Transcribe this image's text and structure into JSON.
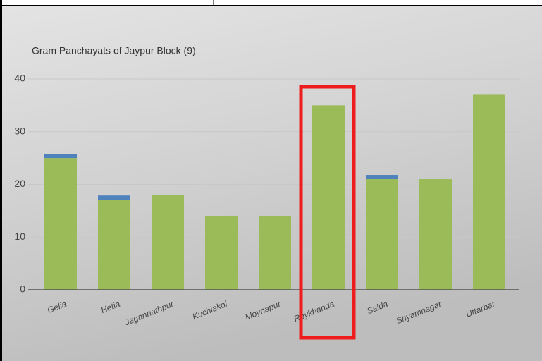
{
  "chart_data": {
    "type": "stacked-bar",
    "title": "Gram Panchayats of Jaypur Block (9)",
    "categories": [
      "Gelia",
      "Hetia",
      "Jagannathpur",
      "Kuchiakol",
      "Moynapur",
      "Roykhanda",
      "Salda",
      "Shyamnagar",
      "Uttarbar"
    ],
    "series": [
      {
        "color": "#9bbb59",
        "values": [
          25,
          17,
          18,
          14,
          14,
          35,
          21,
          21,
          37
        ]
      },
      {
        "color": "#4f81bd",
        "values": [
          0.8,
          0.9,
          null,
          null,
          null,
          null,
          0.8,
          null,
          null
        ]
      }
    ],
    "ylim": [
      0,
      40
    ],
    "yticks": [
      0,
      10,
      20,
      30,
      40
    ],
    "grid": true
  }
}
